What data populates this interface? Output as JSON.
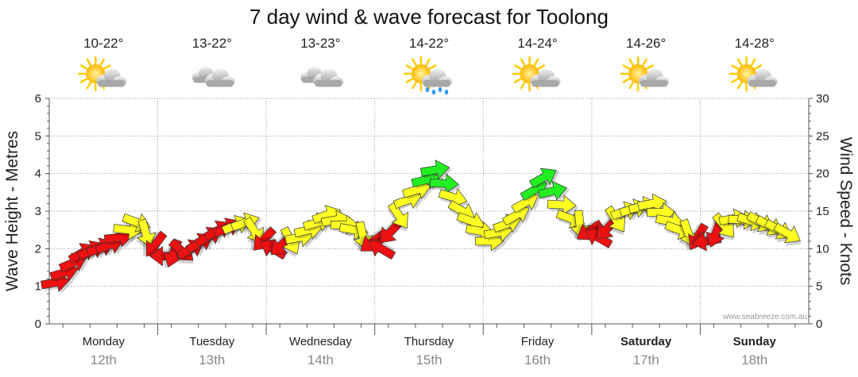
{
  "chart_data": {
    "type": "line",
    "title": "7 day wind & wave forecast for Toolong",
    "ylabel_left": "Wave Height - Metres",
    "ylabel_right": "Wind Speed - Knots",
    "left_axis": {
      "min": 0,
      "max": 6,
      "ticks": [
        "0",
        "1",
        "2",
        "3",
        "4",
        "5",
        "6"
      ]
    },
    "right_axis": {
      "min": 0,
      "max": 30,
      "ticks": [
        "0",
        "5",
        "10",
        "15",
        "20",
        "25",
        "30"
      ]
    },
    "credit": "www.seabreeze.com.au",
    "days": [
      {
        "name": "Monday",
        "date": "12th",
        "temp": "10-22°",
        "weather": "partly-cloudy",
        "bold": false
      },
      {
        "name": "Tuesday",
        "date": "13th",
        "temp": "13-22°",
        "weather": "cloudy",
        "bold": false
      },
      {
        "name": "Wednesday",
        "date": "14th",
        "temp": "13-23°",
        "weather": "cloudy",
        "bold": false
      },
      {
        "name": "Thursday",
        "date": "15th",
        "temp": "14-22°",
        "weather": "showers",
        "bold": false
      },
      {
        "name": "Friday",
        "date": "16th",
        "temp": "14-24°",
        "weather": "partly-cloudy",
        "bold": false
      },
      {
        "name": "Saturday",
        "date": "17th",
        "temp": "14-26°",
        "weather": "partly-cloudy",
        "bold": true
      },
      {
        "name": "Sunday",
        "date": "18th",
        "temp": "14-28°",
        "weather": "partly-cloudy",
        "bold": true
      }
    ],
    "colors": {
      "red": "#ee1111",
      "yellow": "#ffff22",
      "green": "#22ee22",
      "outline": "#333333",
      "sun": "#ffcc00",
      "cloud": "#c8c8c8",
      "rain": "#3399ff"
    },
    "series": [
      {
        "name": "wind",
        "unit": "knots",
        "points": [
          {
            "t": 0.0,
            "v": 5.5,
            "c": "red",
            "d": 80
          },
          {
            "t": 0.25,
            "v": 9.5,
            "c": "red",
            "d": 60
          },
          {
            "t": 0.5,
            "v": 10.5,
            "c": "red",
            "d": 70
          },
          {
            "t": 0.75,
            "v": 13.5,
            "c": "yellow",
            "d": 110
          },
          {
            "t": 1.0,
            "v": 9.0,
            "c": "red",
            "d": 270
          },
          {
            "t": 1.25,
            "v": 10.0,
            "c": "red",
            "d": 60
          },
          {
            "t": 1.5,
            "v": 12.5,
            "c": "red",
            "d": 60
          },
          {
            "t": 1.75,
            "v": 13.5,
            "c": "yellow",
            "d": 70
          },
          {
            "t": 2.0,
            "v": 10.0,
            "c": "red",
            "d": 300
          },
          {
            "t": 2.25,
            "v": 11.5,
            "c": "yellow",
            "d": 80
          },
          {
            "t": 2.5,
            "v": 14.5,
            "c": "yellow",
            "d": 70
          },
          {
            "t": 2.75,
            "v": 12.5,
            "c": "yellow",
            "d": 100
          },
          {
            "t": 3.0,
            "v": 10.0,
            "c": "red",
            "d": 300
          },
          {
            "t": 3.25,
            "v": 16.5,
            "c": "yellow",
            "d": 70
          },
          {
            "t": 3.5,
            "v": 20.5,
            "c": "green",
            "d": 80
          },
          {
            "t": 3.75,
            "v": 15.0,
            "c": "yellow",
            "d": 120
          },
          {
            "t": 4.0,
            "v": 11.0,
            "c": "yellow",
            "d": 90
          },
          {
            "t": 4.25,
            "v": 14.5,
            "c": "yellow",
            "d": 60
          },
          {
            "t": 4.5,
            "v": 19.5,
            "c": "green",
            "d": 60
          },
          {
            "t": 4.75,
            "v": 14.0,
            "c": "yellow",
            "d": 110
          },
          {
            "t": 5.0,
            "v": 11.5,
            "c": "red",
            "d": 300
          },
          {
            "t": 5.25,
            "v": 15.0,
            "c": "yellow",
            "d": 70
          },
          {
            "t": 5.5,
            "v": 16.0,
            "c": "yellow",
            "d": 80
          },
          {
            "t": 5.75,
            "v": 12.5,
            "c": "yellow",
            "d": 110
          },
          {
            "t": 6.0,
            "v": 11.0,
            "c": "red",
            "d": 260
          },
          {
            "t": 6.25,
            "v": 14.0,
            "c": "yellow",
            "d": 80
          },
          {
            "t": 6.5,
            "v": 13.5,
            "c": "yellow",
            "d": 120
          },
          {
            "t": 6.75,
            "v": 12.0,
            "c": "yellow",
            "d": 120
          }
        ]
      }
    ]
  }
}
